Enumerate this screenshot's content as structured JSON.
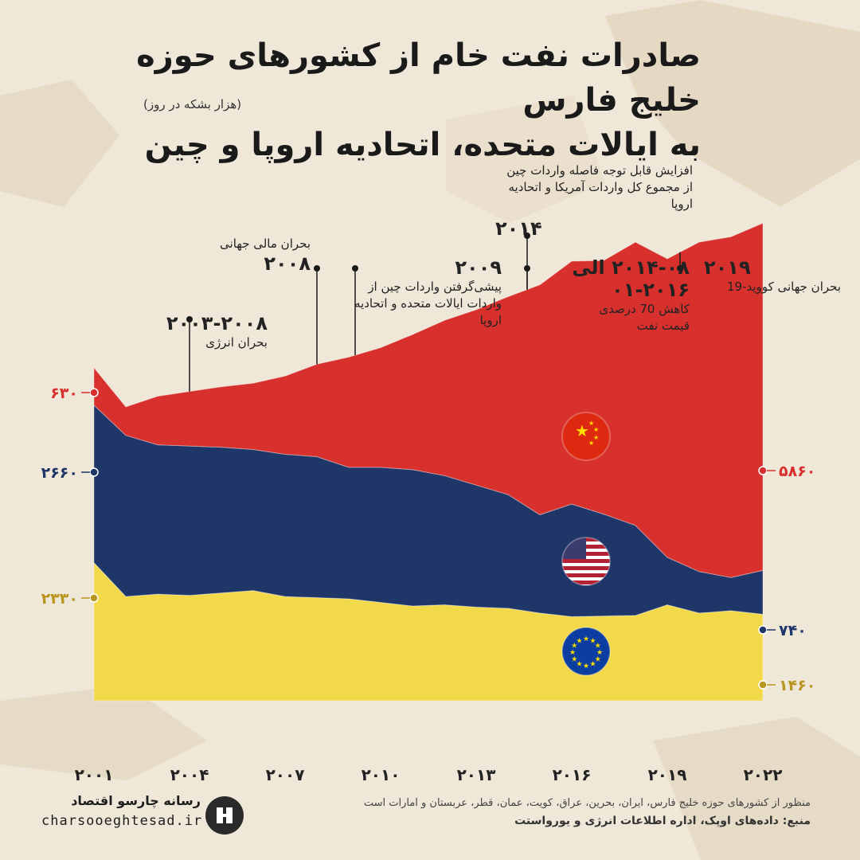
{
  "title": {
    "line1": "صادرات نفت خام از کشورهای حوزه خلیج فارس",
    "line2": "به ایالات متحده، اتحادیه اروپا و چین",
    "unit": "(هزار بشکه در روز)"
  },
  "annotations": [
    {
      "year": "۲۰۰۳-۲۰۰۸",
      "text": "بحران انرژی"
    },
    {
      "year": "۲۰۰۸",
      "text": "بحران مالی جهانی"
    },
    {
      "year": "۲۰۰۹",
      "text": "پیشی‌گرفتن واردات چین از واردات ایالات متحده و اتحادیه اروپا"
    },
    {
      "year": "۲۰۱۴-۰۸ الی ۲۰۱۶-۰۱",
      "text": "کاهش 70 درصدی قیمت نفت"
    },
    {
      "year": "۲۰۱۴",
      "text": "افزایش قابل توجه فاصله واردات چین از مجموع کل واردات آمریکا و اتحادیه اروپا"
    },
    {
      "year": "۲۰۱۹",
      "text": "بحران جهانی کووید-19"
    }
  ],
  "footer": {
    "note": "منظور از کشورهای حوزه خلیج فارس، ایران، بحرین، عراق، کویت، عمان، قطر، عربستان و امارات است",
    "source": "منبع: داده‌های اوپک، اداره اطلاعات انرژی و یورواستت",
    "brand_name": "رسانه چارسو اقتصاد",
    "brand_url": "charsooeghtesad.ir"
  },
  "chart_data": {
    "type": "area",
    "stacked": true,
    "x": [
      2001,
      2002,
      2003,
      2004,
      2005,
      2006,
      2007,
      2008,
      2009,
      2010,
      2011,
      2012,
      2013,
      2014,
      2015,
      2016,
      2017,
      2018,
      2019,
      2020,
      2021,
      2022
    ],
    "x_tick_labels": [
      "۲۰۰۱",
      "۲۰۰۴",
      "۲۰۰۷",
      "۲۰۱۰",
      "۲۰۱۳",
      "۲۰۱۶",
      "۲۰۱۹",
      "۲۰۲۲"
    ],
    "x_tick_values": [
      2001,
      2004,
      2007,
      2010,
      2013,
      2016,
      2019,
      2022
    ],
    "series": [
      {
        "key": "eu",
        "color": "#f2d94a",
        "flag": "eu-flag-icon",
        "values": [
          2330,
          1760,
          1800,
          1780,
          1820,
          1860,
          1760,
          1740,
          1720,
          1660,
          1600,
          1620,
          1580,
          1560,
          1480,
          1420,
          1430,
          1440,
          1620,
          1480,
          1520,
          1460
        ]
      },
      {
        "key": "usa",
        "color": "#1f3768",
        "flag": "usa-flag-icon",
        "values": [
          2660,
          2720,
          2520,
          2520,
          2460,
          2380,
          2400,
          2380,
          2220,
          2280,
          2300,
          2180,
          2060,
          1920,
          1660,
          1900,
          1720,
          1520,
          800,
          700,
          560,
          740
        ]
      },
      {
        "key": "china",
        "color": "#d8312d",
        "flag": "china-flag-icon",
        "values": [
          630,
          480,
          820,
          920,
          1020,
          1120,
          1320,
          1560,
          1860,
          2020,
          2280,
          2620,
          2960,
          3340,
          3880,
          4100,
          4280,
          4780,
          5040,
          5560,
          5750,
          5860
        ]
      }
    ],
    "left_labels": [
      {
        "text": "۶۳۰",
        "color": "#d8312d"
      },
      {
        "text": "۲۶۶۰",
        "color": "#1f3768"
      },
      {
        "text": "۲۳۳۰",
        "color": "#b8951f"
      }
    ],
    "right_labels": [
      {
        "text": "۵۸۶۰",
        "color": "#d8312d"
      },
      {
        "text": "۷۴۰",
        "color": "#1f3768"
      },
      {
        "text": "۱۴۶۰",
        "color": "#b8951f"
      }
    ]
  }
}
